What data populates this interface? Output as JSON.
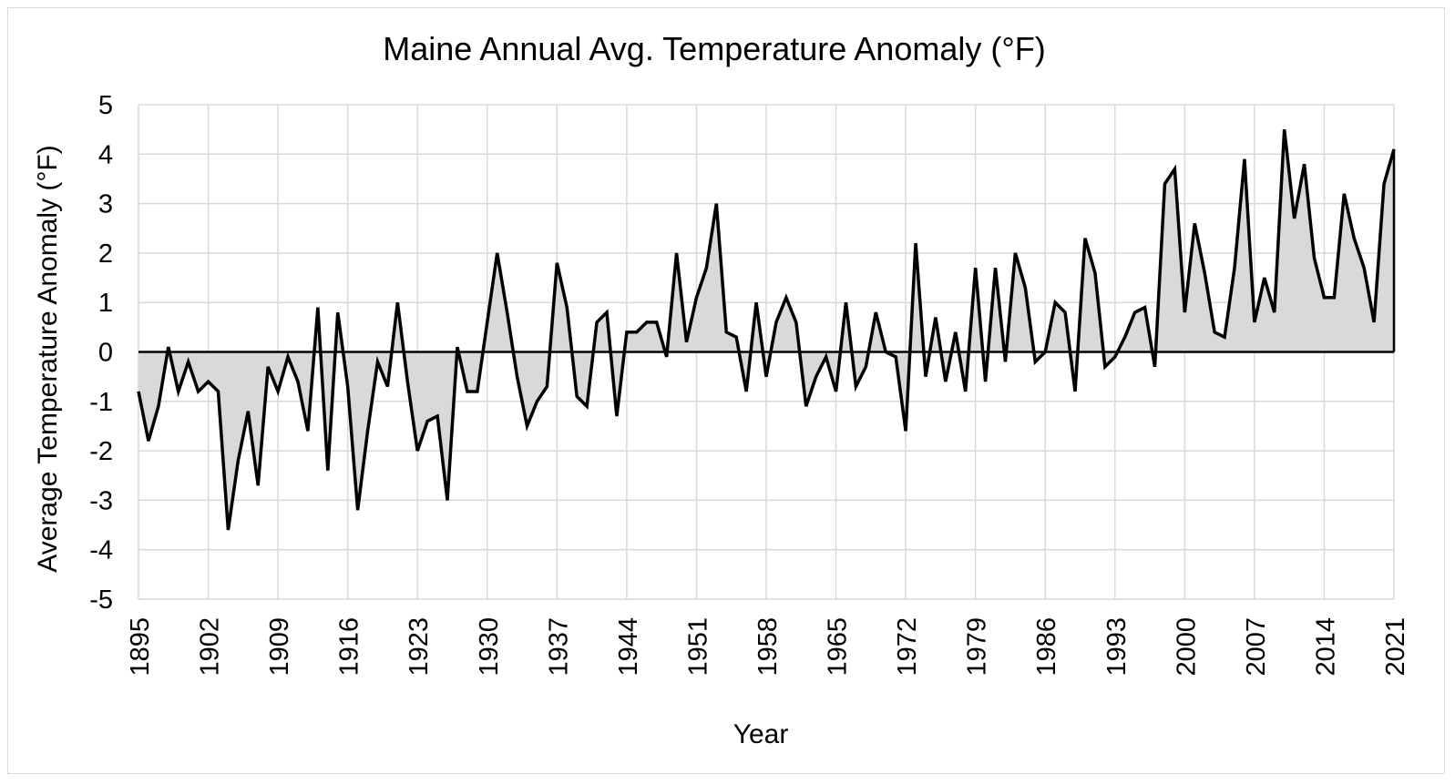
{
  "chart_data": {
    "type": "area",
    "title": "Maine Annual Avg. Temperature Anomaly (°F)",
    "xlabel": "Year",
    "ylabel": "Average Temperature Anomaly (°F)",
    "xlim": [
      1895,
      2021
    ],
    "ylim": [
      -5,
      5
    ],
    "x_tick_labels": [
      "1895",
      "1902",
      "1909",
      "1916",
      "1923",
      "1930",
      "1937",
      "1944",
      "1951",
      "1958",
      "1965",
      "1972",
      "1979",
      "1986",
      "1993",
      "2000",
      "2007",
      "2014",
      "2021"
    ],
    "y_tick_labels": [
      "5",
      "4",
      "3",
      "2",
      "1",
      "0",
      "-1",
      "-2",
      "-3",
      "-4",
      "-5"
    ],
    "grid": true,
    "legend": "none",
    "colors": {
      "line": "#000000",
      "fill": "#d9d9d9",
      "grid": "#d9d9d9"
    },
    "series": [
      {
        "x": [
          1895,
          1896,
          1897,
          1898,
          1899,
          1900,
          1901,
          1902,
          1903,
          1904,
          1905,
          1906,
          1907,
          1908,
          1909,
          1910,
          1911,
          1912,
          1913,
          1914,
          1915,
          1916,
          1917,
          1918,
          1919,
          1920,
          1921,
          1922,
          1923,
          1924,
          1925,
          1926,
          1927,
          1928,
          1929,
          1930,
          1931,
          1932,
          1933,
          1934,
          1935,
          1936,
          1937,
          1938,
          1939,
          1940,
          1941,
          1942,
          1943,
          1944,
          1945,
          1946,
          1947,
          1948,
          1949,
          1950,
          1951,
          1952,
          1953,
          1954,
          1955,
          1956,
          1957,
          1958,
          1959,
          1960,
          1961,
          1962,
          1963,
          1964,
          1965,
          1966,
          1967,
          1968,
          1969,
          1970,
          1971,
          1972,
          1973,
          1974,
          1975,
          1976,
          1977,
          1978,
          1979,
          1980,
          1981,
          1982,
          1983,
          1984,
          1985,
          1986,
          1987,
          1988,
          1989,
          1990,
          1991,
          1992,
          1993,
          1994,
          1995,
          1996,
          1997,
          1998,
          1999,
          2000,
          2001,
          2002,
          2003,
          2004,
          2005,
          2006,
          2007,
          2008,
          2009,
          2010,
          2011,
          2012,
          2013,
          2014,
          2015,
          2016,
          2017,
          2018,
          2019,
          2020,
          2021
        ],
        "values": [
          -0.8,
          -1.8,
          -1.1,
          0.1,
          -0.8,
          -0.2,
          -0.8,
          -0.6,
          -0.8,
          -3.6,
          -2.2,
          -1.2,
          -2.7,
          -0.3,
          -0.8,
          -0.1,
          -0.6,
          -1.6,
          0.9,
          -2.4,
          0.8,
          -0.7,
          -3.2,
          -1.6,
          -0.2,
          -0.7,
          1.0,
          -0.6,
          -2.0,
          -1.4,
          -1.3,
          -3.0,
          0.1,
          -0.8,
          -0.8,
          0.6,
          2.0,
          0.8,
          -0.5,
          -1.5,
          -1.0,
          -0.7,
          1.8,
          0.9,
          -0.9,
          -1.1,
          0.6,
          0.8,
          -1.3,
          0.4,
          0.4,
          0.6,
          0.6,
          -0.1,
          2.0,
          0.2,
          1.1,
          1.7,
          3.0,
          0.4,
          0.3,
          -0.8,
          1.0,
          -0.5,
          0.6,
          1.1,
          0.6,
          -1.1,
          -0.5,
          -0.1,
          -0.8,
          1.0,
          -0.7,
          -0.3,
          0.8,
          0.0,
          -0.1,
          -1.6,
          2.2,
          -0.5,
          0.7,
          -0.6,
          0.4,
          -0.8,
          1.7,
          -0.6,
          1.7,
          -0.2,
          2.0,
          1.3,
          -0.2,
          0.0,
          1.0,
          0.8,
          -0.8,
          2.3,
          1.6,
          -0.3,
          -0.1,
          0.3,
          0.8,
          0.9,
          -0.3,
          3.4,
          3.7,
          0.8,
          2.6,
          1.6,
          0.4,
          0.3,
          1.7,
          3.9,
          0.6,
          1.5,
          0.8,
          4.5,
          2.7,
          3.8,
          1.9,
          1.1,
          1.1,
          3.2,
          2.3,
          1.7,
          0.6,
          3.4,
          4.1
        ]
      }
    ]
  }
}
